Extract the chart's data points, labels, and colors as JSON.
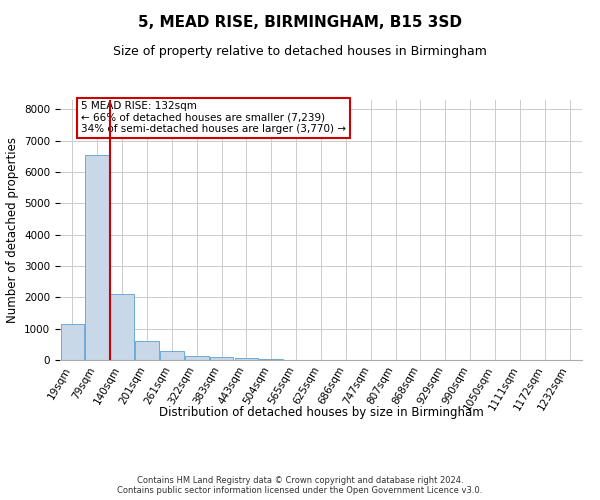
{
  "title": "5, MEAD RISE, BIRMINGHAM, B15 3SD",
  "subtitle": "Size of property relative to detached houses in Birmingham",
  "xlabel": "Distribution of detached houses by size in Birmingham",
  "ylabel": "Number of detached properties",
  "footer_line1": "Contains HM Land Registry data © Crown copyright and database right 2024.",
  "footer_line2": "Contains public sector information licensed under the Open Government Licence v3.0.",
  "categories": [
    "19sqm",
    "79sqm",
    "140sqm",
    "201sqm",
    "261sqm",
    "322sqm",
    "383sqm",
    "443sqm",
    "504sqm",
    "565sqm",
    "625sqm",
    "686sqm",
    "747sqm",
    "807sqm",
    "868sqm",
    "929sqm",
    "990sqm",
    "1050sqm",
    "1111sqm",
    "1172sqm",
    "1232sqm"
  ],
  "values": [
    1150,
    6550,
    2100,
    620,
    280,
    130,
    90,
    55,
    40,
    0,
    0,
    0,
    0,
    0,
    0,
    0,
    0,
    0,
    0,
    0,
    0
  ],
  "bar_color": "#c8d8e8",
  "bar_edge_color": "#5a9fd4",
  "red_line_x": 2,
  "red_line_color": "#cc0000",
  "annotation_text": "5 MEAD RISE: 132sqm\n← 66% of detached houses are smaller (7,239)\n34% of semi-detached houses are larger (3,770) →",
  "annotation_box_color": "#ffffff",
  "annotation_box_edge_color": "#cc0000",
  "ylim": [
    0,
    8300
  ],
  "yticks": [
    0,
    1000,
    2000,
    3000,
    4000,
    5000,
    6000,
    7000,
    8000
  ],
  "bg_color": "#ffffff",
  "grid_color": "#cccccc",
  "title_fontsize": 11,
  "subtitle_fontsize": 9,
  "axis_label_fontsize": 8.5,
  "tick_fontsize": 7.5,
  "annotation_fontsize": 7.5,
  "footer_fontsize": 6
}
